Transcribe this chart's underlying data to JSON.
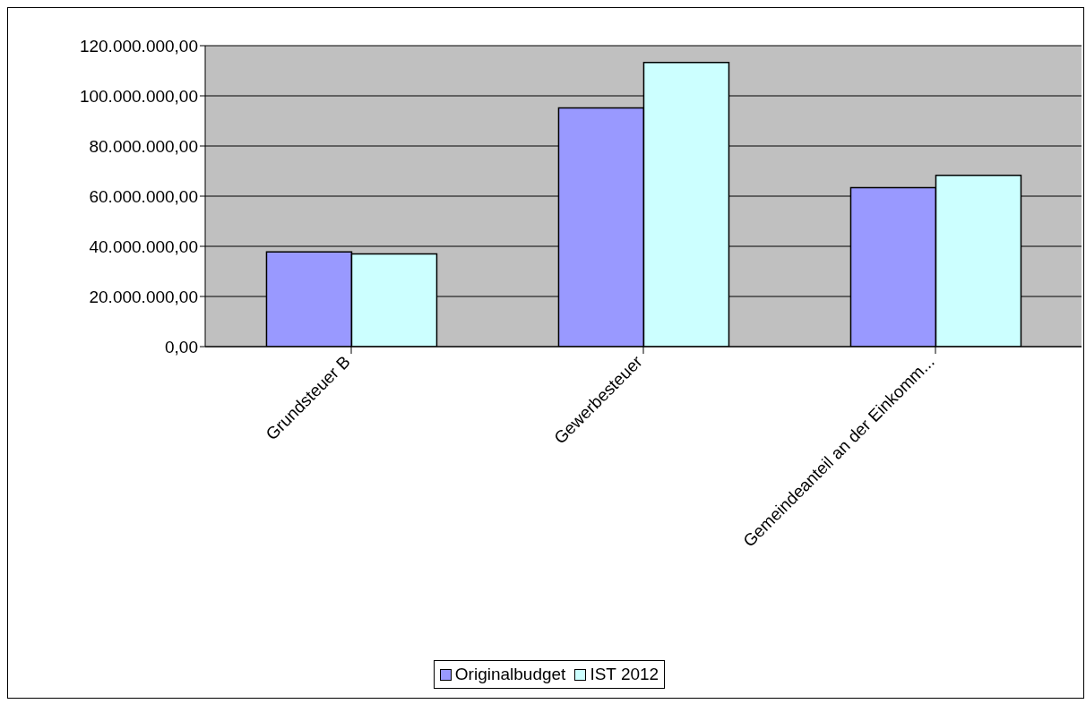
{
  "chart_data": {
    "type": "bar",
    "categories": [
      "Grundsteuer B",
      "Gewerbesteuer",
      "Gemeindeanteil an der Einkomm..."
    ],
    "series": [
      {
        "name": "Originalbudget",
        "color": "#9999ff",
        "values": [
          37800000,
          95200000,
          63400000
        ]
      },
      {
        "name": "IST 2012",
        "color": "#ccffff",
        "values": [
          37000000,
          113300000,
          68300000
        ]
      }
    ],
    "ylim": [
      0,
      120000000
    ],
    "yticks": [
      {
        "value": 0,
        "label": "0,00"
      },
      {
        "value": 20000000,
        "label": "20.000.000,00"
      },
      {
        "value": 40000000,
        "label": "40.000.000,00"
      },
      {
        "value": 60000000,
        "label": "60.000.000,00"
      },
      {
        "value": 80000000,
        "label": "80.000.000,00"
      },
      {
        "value": 100000000,
        "label": "100.000.000,00"
      },
      {
        "value": 120000000,
        "label": "120.000.000,00"
      }
    ],
    "grid": "y",
    "legend": "bottom"
  }
}
